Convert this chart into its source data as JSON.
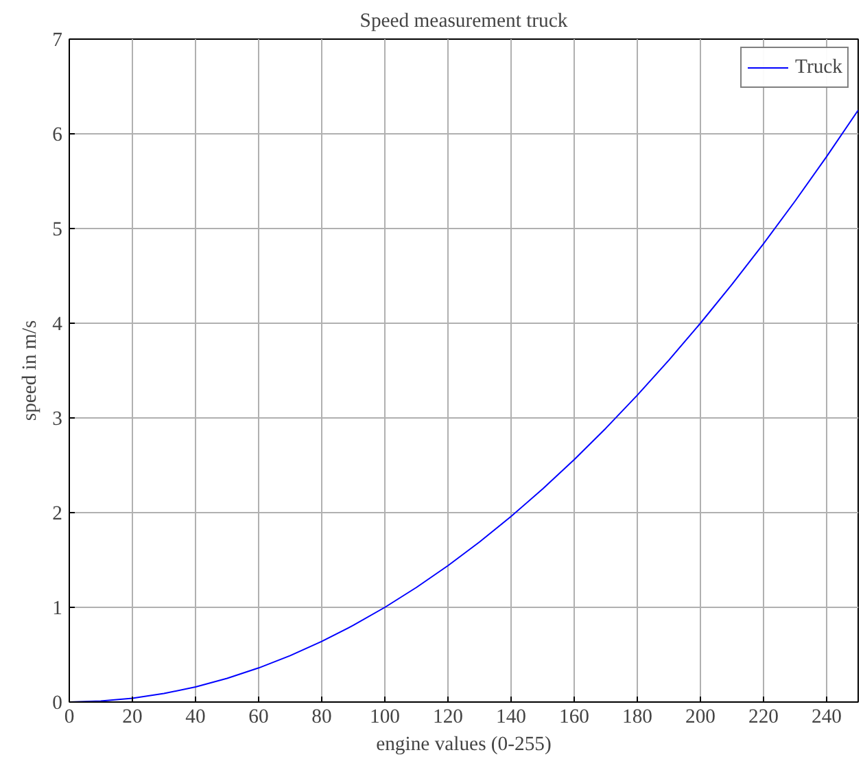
{
  "chart_data": {
    "type": "line",
    "title": "Speed measurement truck",
    "xlabel": "engine values (0-255)",
    "ylabel": "speed in m/s",
    "x": [
      0,
      10,
      20,
      30,
      40,
      50,
      60,
      70,
      80,
      90,
      100,
      110,
      120,
      130,
      140,
      150,
      160,
      170,
      180,
      190,
      200,
      210,
      220,
      230,
      240,
      250
    ],
    "series": [
      {
        "name": "Truck",
        "color": "#0000ff",
        "values": [
          0,
          0.01,
          0.04,
          0.09,
          0.16,
          0.25,
          0.36,
          0.49,
          0.64,
          0.81,
          1,
          1.21,
          1.44,
          1.69,
          1.96,
          2.25,
          2.56,
          2.89,
          3.24,
          3.61,
          4,
          4.41,
          4.84,
          5.29,
          5.76,
          6.25
        ]
      }
    ],
    "xlim": [
      0,
      250
    ],
    "ylim": [
      0,
      7
    ],
    "xticks": [
      0,
      20,
      40,
      60,
      80,
      100,
      120,
      140,
      160,
      180,
      200,
      220,
      240
    ],
    "yticks": [
      0,
      1,
      2,
      3,
      4,
      5,
      6,
      7
    ],
    "grid": true,
    "legend": "top right",
    "marker": "none",
    "line_style": "solid"
  }
}
